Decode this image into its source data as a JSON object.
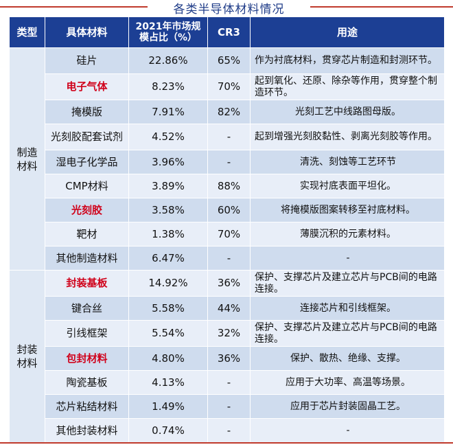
{
  "title": "各类半导体材料情况",
  "headers": {
    "type": "类型",
    "material": "具体材料",
    "share": "2021年市场规模占比（%）",
    "cr3": "CR3",
    "use": "用途"
  },
  "groups": [
    {
      "category": "制造材料",
      "rows": [
        {
          "material": "硅片",
          "share": "22.86%",
          "cr3": "65%",
          "use": "作为衬底材料，贯穿芯片制造和封测环节。",
          "highlight": false,
          "use_align": "left"
        },
        {
          "material": "电子气体",
          "share": "8.23%",
          "cr3": "70%",
          "use": "起到氧化、还原、除杂等作用，贯穿整个制造环节。",
          "highlight": true,
          "use_align": "left"
        },
        {
          "material": "掩模版",
          "share": "7.91%",
          "cr3": "82%",
          "use": "光刻工艺中线路图母版。",
          "highlight": false,
          "use_align": "center"
        },
        {
          "material": "光刻胶配套试剂",
          "share": "4.52%",
          "cr3": "-",
          "use": "起到增强光刻胶黏性、剥离光刻胶等作用。",
          "highlight": false,
          "use_align": "left"
        },
        {
          "material": "湿电子化学品",
          "share": "3.96%",
          "cr3": "-",
          "use": "清洗、刻蚀等工艺环节",
          "highlight": false,
          "use_align": "center"
        },
        {
          "material": "CMP材料",
          "share": "3.89%",
          "cr3": "88%",
          "use": "实现衬底表面平坦化。",
          "highlight": false,
          "use_align": "center"
        },
        {
          "material": "光刻胶",
          "share": "3.58%",
          "cr3": "60%",
          "use": "将掩模版图案转移至衬底材料。",
          "highlight": true,
          "use_align": "center"
        },
        {
          "material": "靶材",
          "share": "1.38%",
          "cr3": "70%",
          "use": "薄膜沉积的元素材料。",
          "highlight": false,
          "use_align": "center"
        },
        {
          "material": "其他制造材料",
          "share": "6.47%",
          "cr3": "-",
          "use": "-",
          "highlight": false,
          "use_align": "center"
        }
      ]
    },
    {
      "category": "封装材料",
      "rows": [
        {
          "material": "封装基板",
          "share": "14.92%",
          "cr3": "36%",
          "use": "保护、支撑芯片及建立芯片与PCB间的电路连接。",
          "highlight": true,
          "use_align": "left"
        },
        {
          "material": "键合丝",
          "share": "5.58%",
          "cr3": "44%",
          "use": "连接芯片和引线框架。",
          "highlight": false,
          "use_align": "center"
        },
        {
          "material": "引线框架",
          "share": "5.54%",
          "cr3": "32%",
          "use": "保护、支撑芯片及建立芯片与PCB间的电路连接。",
          "highlight": false,
          "use_align": "left"
        },
        {
          "material": "包封材料",
          "share": "4.80%",
          "cr3": "36%",
          "use": "保护、散热、绝缘、支撑。",
          "highlight": true,
          "use_align": "center"
        },
        {
          "material": "陶瓷基板",
          "share": "4.13%",
          "cr3": "-",
          "use": "应用于大功率、高温等场景。",
          "highlight": false,
          "use_align": "center"
        },
        {
          "material": "芯片粘结材料",
          "share": "1.49%",
          "cr3": "-",
          "use": "应用于芯片封装固晶工艺。",
          "highlight": false,
          "use_align": "center"
        },
        {
          "material": "其他封装材料",
          "share": "0.74%",
          "cr3": "-",
          "use": "-",
          "highlight": false,
          "use_align": "center"
        }
      ]
    }
  ],
  "colors": {
    "header_bg": "#1c3f94",
    "row_dark": "#cfdcee",
    "row_light": "#e8eef8",
    "highlight_text": "#d0021b",
    "title_text": "#1f3c88",
    "rule": "#c0392b"
  }
}
